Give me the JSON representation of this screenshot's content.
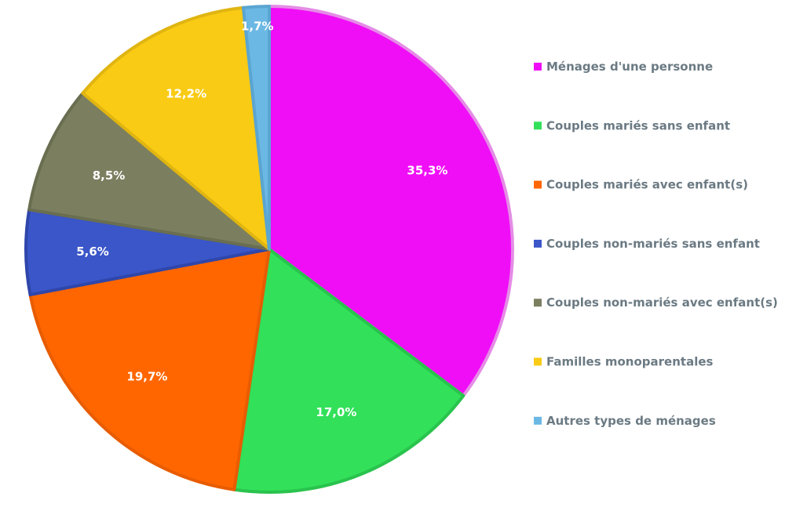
{
  "chart_data": {
    "type": "pie",
    "start_angle_deg": 0,
    "direction": "clockwise",
    "slices": [
      {
        "label": " Ménages d'une personne",
        "value": 35.3,
        "display": "35,3%",
        "color": "#f00ef7",
        "stroke": "#e58ce6"
      },
      {
        "label": "Couples mariés sans enfant",
        "value": 17.0,
        "display": "17,0%",
        "color": "#32e05a",
        "stroke": "#29c34d"
      },
      {
        "label": "Couples mariés avec enfant(s)",
        "value": 19.7,
        "display": "19,7%",
        "color": "#ff6600",
        "stroke": "#e85c00"
      },
      {
        "label": "Couples non-mariés sans enfant",
        "value": 5.6,
        "display": "5,6%",
        "color": "#3a56c8",
        "stroke": "#2f46aa"
      },
      {
        "label": "Couples non-mariés avec enfant(s)",
        "value": 8.5,
        "display": "8,5%",
        "color": "#7b7f60",
        "stroke": "#6a6e51"
      },
      {
        "label": "Familles monoparentales",
        "value": 12.2,
        "display": "12,2%",
        "color": "#f9cb14",
        "stroke": "#e0b511"
      },
      {
        "label": "Autres types de ménages",
        "value": 1.7,
        "display": "1,7%",
        "color": "#6cb8e4",
        "stroke": "#5aa5d1"
      }
    ],
    "legend_position": "right"
  }
}
